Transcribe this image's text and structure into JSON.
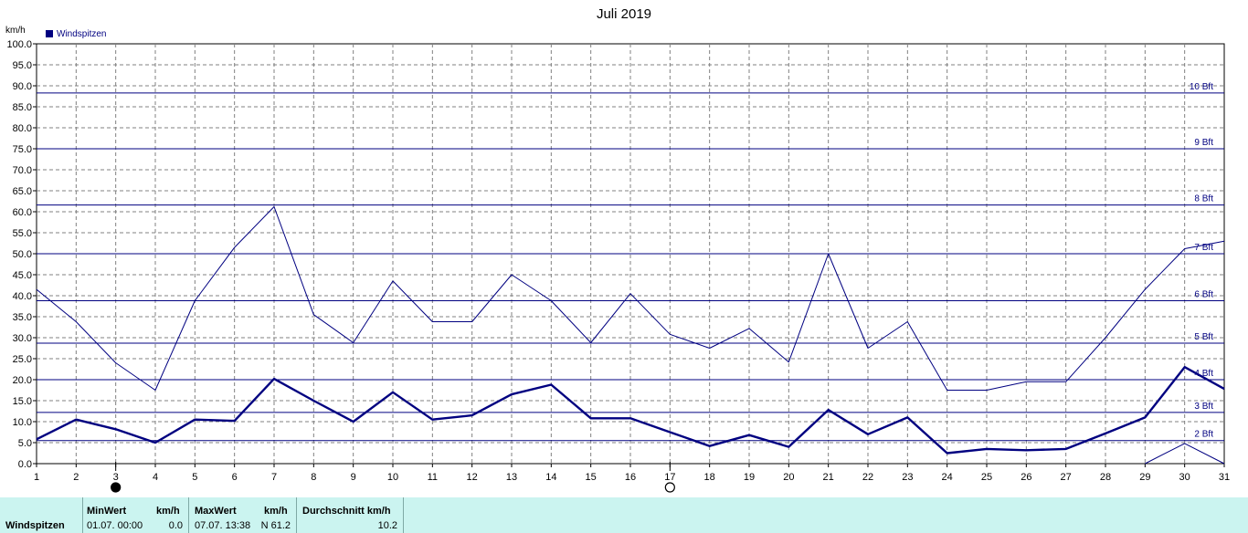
{
  "chart_data": {
    "type": "line",
    "title": "Juli 2019",
    "ylabel": "km/h",
    "xlabel": "",
    "ylim": [
      0,
      100
    ],
    "xlim": [
      1,
      31
    ],
    "x": [
      1,
      2,
      3,
      4,
      5,
      6,
      7,
      8,
      9,
      10,
      11,
      12,
      13,
      14,
      15,
      16,
      17,
      18,
      19,
      20,
      21,
      22,
      23,
      24,
      25,
      26,
      27,
      28,
      29,
      30,
      31
    ],
    "x_ticks": [
      "1",
      "2",
      "3",
      "4",
      "5",
      "6",
      "7",
      "8",
      "9",
      "10",
      "11",
      "12",
      "13",
      "14",
      "15",
      "16",
      "17",
      "18",
      "19",
      "20",
      "21",
      "22",
      "23",
      "24",
      "25",
      "26",
      "27",
      "28",
      "29",
      "30",
      "31"
    ],
    "y_ticks": [
      "0.0",
      "5.0",
      "10.0",
      "15.0",
      "20.0",
      "25.0",
      "30.0",
      "35.0",
      "40.0",
      "45.0",
      "50.0",
      "55.0",
      "60.0",
      "65.0",
      "70.0",
      "75.0",
      "80.0",
      "85.0",
      "90.0",
      "95.0",
      "100.0"
    ],
    "grid": true,
    "legend_position": "top-left",
    "legend": [
      "Windspitzen"
    ],
    "series": [
      {
        "name": "Windspitzen",
        "style": "thin",
        "values": [
          41.5,
          33.8,
          24.0,
          17.5,
          38.8,
          51.5,
          61.2,
          35.5,
          28.8,
          43.5,
          33.8,
          33.8,
          45.0,
          38.8,
          28.8,
          40.5,
          30.8,
          27.5,
          32.2,
          24.2,
          50.0,
          27.5,
          33.8,
          17.5,
          17.5,
          19.5,
          19.5,
          30.0,
          41.5,
          51.2,
          53.0
        ]
      },
      {
        "name": "",
        "style": "thick",
        "values": [
          5.8,
          10.5,
          8.2,
          5.0,
          10.5,
          10.2,
          20.2,
          15.0,
          10.0,
          17.0,
          10.5,
          11.5,
          16.5,
          18.8,
          10.8,
          10.8,
          7.5,
          4.2,
          6.8,
          4.0,
          12.8,
          7.0,
          11.0,
          2.5,
          3.5,
          3.2,
          3.5,
          7.2,
          11.0,
          23.0,
          17.8
        ]
      },
      {
        "name": "",
        "style": "thin",
        "x": [
          29,
          30,
          31
        ],
        "values": [
          0.0,
          4.8,
          0.0
        ]
      }
    ],
    "reference_lines": [
      {
        "label": "2 Bft",
        "value": 5.5
      },
      {
        "label": "3 Bft",
        "value": 12.2
      },
      {
        "label": "4 Bft",
        "value": 20.0
      },
      {
        "label": "5 Bft",
        "value": 28.7
      },
      {
        "label": "6 Bft",
        "value": 38.8
      },
      {
        "label": "7 Bft",
        "value": 50.0
      },
      {
        "label": "8 Bft",
        "value": 61.6
      },
      {
        "label": "9 Bft",
        "value": 75.0
      },
      {
        "label": "10 Bft",
        "value": 88.3
      }
    ],
    "moon_markers": [
      {
        "day": 3,
        "phase": "new-moon"
      },
      {
        "day": 17,
        "phase": "full-moon"
      }
    ],
    "colors": {
      "line": "#000080",
      "grid": "#808080",
      "axis": "#000000",
      "footer_bg": "#cbf4f0"
    }
  },
  "footer": {
    "row_label": "Windspitzen",
    "min_header": "MinWert",
    "min_unit": "km/h",
    "min_time": "01.07.  00:00",
    "min_value": "0.0",
    "max_header": "MaxWert",
    "max_unit": "km/h",
    "max_time": "07.07.  13:38",
    "max_value": "N 61.2",
    "avg_header": "Durchschnitt km/h",
    "avg_value": "10.2"
  }
}
